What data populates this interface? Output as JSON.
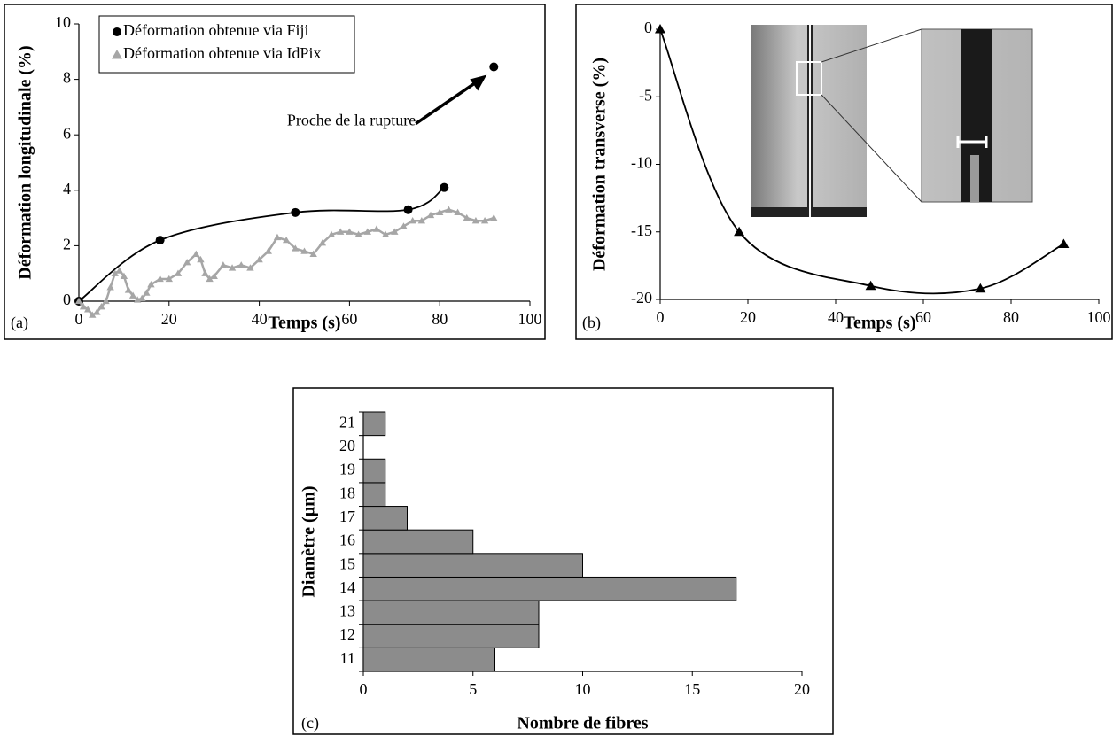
{
  "chart_data": [
    {
      "type": "line",
      "panel_label": "(a)",
      "xlabel": "Temps (s)",
      "ylabel": "Déformation longitudinale (%)",
      "xlim": [
        0,
        100
      ],
      "xticks": [
        0,
        20,
        40,
        60,
        80,
        100
      ],
      "ylim": [
        0,
        10
      ],
      "yticks": [
        0,
        2,
        4,
        6,
        8,
        10
      ],
      "legend": "upper left",
      "series": [
        {
          "name": "Déformation obtenue via Fiji",
          "color": "#000000",
          "marker": "circle",
          "smooth": true,
          "x": [
            0,
            18,
            48,
            73,
            81
          ],
          "values": [
            0,
            2.2,
            3.2,
            3.3,
            4.1
          ]
        },
        {
          "name": "Déformation obtenue via IdPix",
          "color": "#a6a6a6",
          "marker": "triangle",
          "smooth": false,
          "x": [
            0,
            1,
            2,
            3,
            4,
            5,
            6,
            7,
            8,
            9,
            10,
            11,
            12,
            13,
            14,
            15,
            16,
            18,
            20,
            22,
            24,
            26,
            27,
            28,
            29,
            30,
            32,
            34,
            36,
            38,
            40,
            42,
            44,
            46,
            48,
            50,
            52,
            54,
            56,
            58,
            60,
            62,
            64,
            66,
            68,
            70,
            72,
            74,
            76,
            78,
            80,
            82,
            84,
            86,
            88,
            90,
            92
          ],
          "values": [
            0,
            -0.2,
            -0.3,
            -0.5,
            -0.4,
            -0.2,
            0,
            0.5,
            1.0,
            1.1,
            0.9,
            0.4,
            0.2,
            0.05,
            0.1,
            0.3,
            0.6,
            0.8,
            0.8,
            1.0,
            1.4,
            1.7,
            1.5,
            1.0,
            0.8,
            0.9,
            1.3,
            1.2,
            1.3,
            1.2,
            1.5,
            1.8,
            2.3,
            2.2,
            1.9,
            1.8,
            1.7,
            2.1,
            2.4,
            2.5,
            2.5,
            2.4,
            2.5,
            2.6,
            2.4,
            2.5,
            2.7,
            2.9,
            2.9,
            3.1,
            3.2,
            3.3,
            3.2,
            3.0,
            2.9,
            2.9,
            3.0
          ]
        }
      ],
      "annotations": [
        {
          "text": "Proche de la rupture",
          "x": 92,
          "y": 8.45
        }
      ]
    },
    {
      "type": "line",
      "panel_label": "(b)",
      "xlabel": "Temps (s)",
      "ylabel": "Déformation transverse (%)",
      "xlim": [
        0,
        100
      ],
      "xticks": [
        0,
        20,
        40,
        60,
        80,
        100
      ],
      "ylim": [
        -20,
        0
      ],
      "yticks": [
        -20,
        -15,
        -10,
        -5,
        0
      ],
      "series": [
        {
          "color": "#000000",
          "marker": "triangle",
          "smooth": true,
          "x": [
            0,
            18,
            48,
            73,
            92
          ],
          "values": [
            0,
            -15,
            -19,
            -19.2,
            -15.9
          ]
        }
      ]
    },
    {
      "type": "bar",
      "orientation": "horizontal",
      "panel_label": "(c)",
      "xlabel": "Nombre de fibres",
      "ylabel": "Diamètre (µm)",
      "categories": [
        "11",
        "12",
        "13",
        "14",
        "15",
        "16",
        "17",
        "18",
        "19",
        "20",
        "21"
      ],
      "values": [
        6,
        8,
        8,
        17,
        10,
        5,
        2,
        1,
        1,
        0,
        1
      ],
      "color": "#8c8c8c",
      "xlim": [
        0,
        20
      ],
      "xticks": [
        0,
        5,
        10,
        15,
        20
      ]
    }
  ]
}
